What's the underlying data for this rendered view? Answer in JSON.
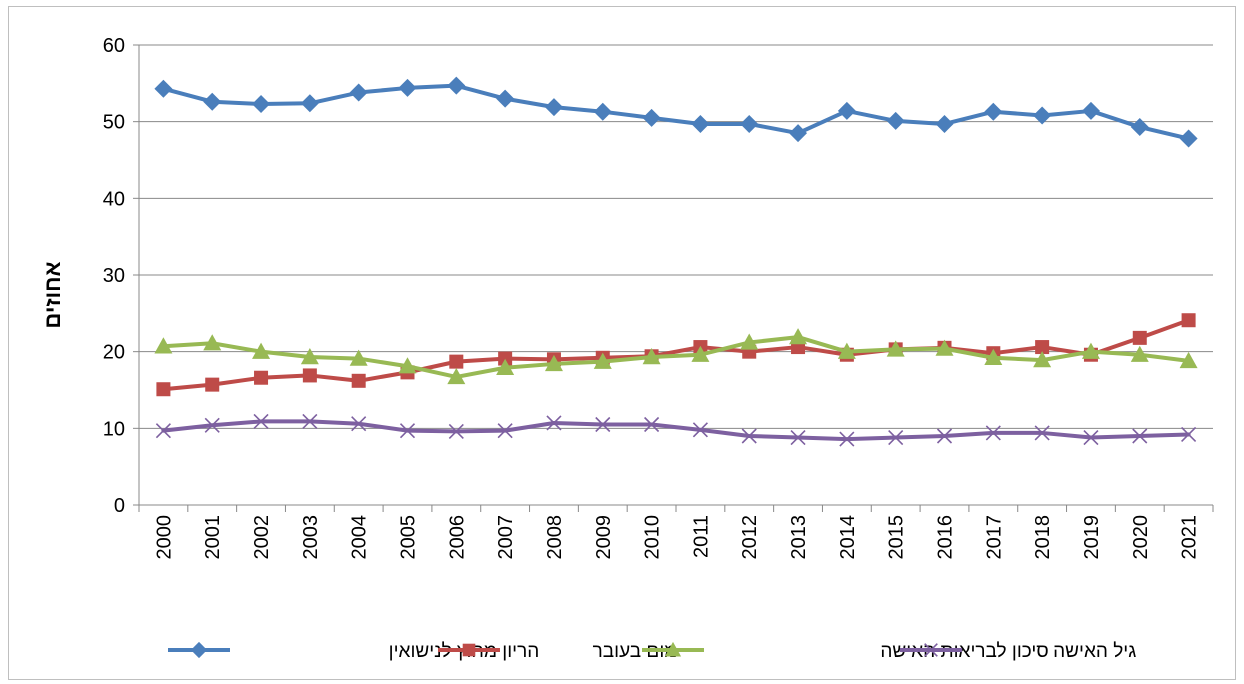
{
  "chart_data": {
    "type": "line",
    "title": "",
    "xlabel": "",
    "ylabel": "אחוזים",
    "ylim": [
      0,
      60
    ],
    "yticks": [
      0,
      10,
      20,
      30,
      40,
      50,
      60
    ],
    "grid": "horizontal",
    "legend_position": "bottom",
    "categories": [
      "2000",
      "2001",
      "2002",
      "2003",
      "2004",
      "2005",
      "2006",
      "2007",
      "2008",
      "2009",
      "2010",
      "2011",
      "2012",
      "2013",
      "2014",
      "2015",
      "2016",
      "2017",
      "2018",
      "2019",
      "2020",
      "2021"
    ],
    "series": [
      {
        "name": "הריון מחוץ לנישואין",
        "color": "#4a7ebb",
        "marker": "diamond",
        "values": [
          54.3,
          52.6,
          52.3,
          52.4,
          53.8,
          54.4,
          54.7,
          53.0,
          51.9,
          51.3,
          50.5,
          49.7,
          49.7,
          48.5,
          51.4,
          50.1,
          49.7,
          51.3,
          50.8,
          51.4,
          49.3,
          47.8
        ]
      },
      {
        "name": "מום בעובר",
        "color": "#be4b48",
        "marker": "square",
        "values": [
          15.1,
          15.7,
          16.6,
          16.9,
          16.2,
          17.3,
          18.7,
          19.1,
          19.0,
          19.2,
          19.4,
          20.6,
          20.0,
          20.6,
          19.6,
          20.3,
          20.5,
          19.8,
          20.6,
          19.6,
          21.8,
          24.1
        ]
      },
      {
        "name": "סיכון לבריאות האישה",
        "color": "#98b954",
        "marker": "triangle",
        "values": [
          20.7,
          21.1,
          20.0,
          19.3,
          19.1,
          18.1,
          16.7,
          17.9,
          18.4,
          18.7,
          19.3,
          19.6,
          21.2,
          21.9,
          20.0,
          20.3,
          20.4,
          19.2,
          18.9,
          20.0,
          19.6,
          18.8
        ]
      },
      {
        "name": "גיל האישה",
        "color": "#7d60a0",
        "marker": "x",
        "values": [
          9.7,
          10.4,
          10.9,
          10.9,
          10.6,
          9.7,
          9.6,
          9.7,
          10.7,
          10.5,
          10.5,
          9.8,
          9.0,
          8.8,
          8.6,
          8.8,
          9.0,
          9.4,
          9.4,
          8.8,
          9.0,
          9.2
        ]
      }
    ]
  }
}
